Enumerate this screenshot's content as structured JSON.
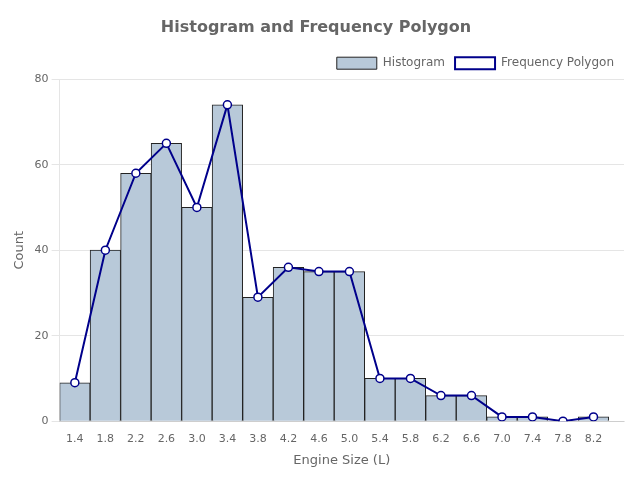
{
  "chart_data": {
    "type": "histogram",
    "title": "Histogram and Frequency Polygon",
    "xlabel": "Engine Size (L)",
    "ylabel": "Count",
    "bins": [
      1.2,
      1.6,
      2.0,
      2.4,
      2.8,
      3.2,
      3.6,
      4.0,
      4.4,
      4.8,
      5.2,
      5.6,
      6.0,
      6.4,
      6.8,
      7.2,
      7.6,
      8.0,
      8.4
    ],
    "series": [
      {
        "name": "Histogram",
        "type": "bar",
        "color": "#b8c9d9",
        "values": [
          9,
          40,
          58,
          65,
          50,
          74,
          29,
          36,
          35,
          35,
          10,
          10,
          6,
          6,
          1,
          1,
          0,
          1
        ]
      },
      {
        "name": "Frequency Polygon",
        "type": "line",
        "color": "#00008b",
        "marker": "circle",
        "x": [
          1.4,
          1.8,
          2.2,
          2.6,
          3.0,
          3.4,
          3.8,
          4.2,
          4.6,
          5.0,
          5.4,
          5.8,
          6.2,
          6.6,
          7.0,
          7.4,
          7.8,
          8.2
        ],
        "values": [
          9,
          40,
          58,
          65,
          50,
          74,
          29,
          36,
          35,
          35,
          10,
          10,
          6,
          6,
          1,
          1,
          0,
          1
        ]
      }
    ],
    "xlim": [
      1.2,
      8.6
    ],
    "xticks": [
      1.4,
      1.8,
      2.2,
      2.6,
      {
        "value": 3.0,
        "label": "3.0"
      },
      3.4,
      3.8,
      4.2,
      4.6,
      {
        "value": 5.0,
        "label": "5.0"
      },
      5.4,
      5.8,
      6.2,
      6.6,
      {
        "value": 7.0,
        "label": "7.0"
      },
      7.4,
      7.8,
      8.2
    ],
    "ylim": [
      0,
      80
    ],
    "yticks": [
      0,
      20,
      40,
      60,
      80
    ],
    "grid": "y",
    "legend": "upper right"
  }
}
